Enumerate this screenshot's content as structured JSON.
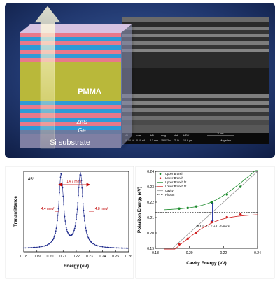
{
  "top": {
    "layers": {
      "pmma": "PMMA",
      "zns": "ZnS",
      "ge": "Ge",
      "substrate": "Si substrate"
    },
    "sem_info": {
      "cols": [
        "HV",
        "curr",
        "WD",
        "mag",
        "det",
        "HFW"
      ],
      "vals": [
        "10.00 kV",
        "0.10 nA",
        "4.3 mm",
        "15 012 x",
        "TLD",
        "13.8 µm"
      ],
      "scale": "3 µm",
      "brand": "Magellan"
    }
  },
  "left_chart": {
    "tag": "45°",
    "annotations": [
      "14.7 meV",
      "4.4 meV",
      "4.8 meV"
    ],
    "colors": {
      "curve": "#1e2a8c",
      "annotation": "#c00000"
    }
  },
  "right_chart": {
    "equation": "ℏΩ = 13.7 ± 0.45meV",
    "legend": [
      "Upper Branch",
      "Lower Branch",
      "Upper Branch fit",
      "Lower Branch fit",
      "Cavity",
      "Photon"
    ],
    "colors": {
      "upper": "#1a8a2a",
      "lower": "#d02020",
      "cavity": "#888888",
      "photon": "#222222",
      "arrow": "#1a2a9c"
    }
  },
  "chart_data": [
    {
      "type": "scatter",
      "xlabel": "Energy (eV)",
      "ylabel": "Transmittance",
      "xlim": [
        0.18,
        0.26
      ],
      "x_ticks": [
        "0.18",
        "0.19",
        "0.20",
        "0.21",
        "0.22",
        "0.23",
        "0.24",
        "0.25",
        "0.26"
      ],
      "peaks": [
        {
          "center": 0.2085,
          "height": 0.95,
          "fwhm": 0.0044
        },
        {
          "center": 0.2232,
          "height": 0.96,
          "fwhm": 0.0048
        }
      ],
      "baseline": 0.04,
      "grid": false
    },
    {
      "type": "scatter",
      "xlabel": "Cavity Energy (eV)",
      "ylabel": "Polariton Energy (eV)",
      "xlim": [
        0.18,
        0.24
      ],
      "ylim": [
        0.19,
        0.24
      ],
      "x_ticks": [
        "0.18",
        "0.20",
        "0.22",
        "0.24"
      ],
      "y_ticks": [
        "0.19",
        "0.20",
        "0.21",
        "0.22",
        "0.23",
        "0.24"
      ],
      "series": [
        {
          "name": "Upper Branch",
          "x": [
            0.194,
            0.199,
            0.204,
            0.213,
            0.222,
            0.23
          ],
          "y": [
            0.2158,
            0.2162,
            0.2172,
            0.22,
            0.225,
            0.23
          ]
        },
        {
          "name": "Lower Branch",
          "x": [
            0.194,
            0.199,
            0.204,
            0.213,
            0.222,
            0.23
          ],
          "y": [
            0.1928,
            0.1962,
            0.2002,
            0.207,
            0.2102,
            0.212
          ]
        }
      ],
      "photon_energy": 0.2135,
      "coupling_meV": 13.7,
      "legend_position": "top-left",
      "grid": false
    }
  ]
}
